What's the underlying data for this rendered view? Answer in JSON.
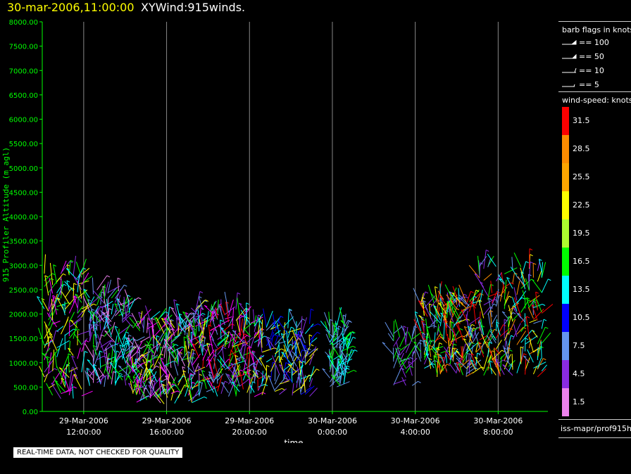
{
  "header": {
    "datetime": "30-mar-2006,11:00:00",
    "title": "XYWind:915winds."
  },
  "chart_data": {
    "type": "wind-barb-scatter",
    "xlabel": "time",
    "ylabel": "915 Profiler Altitude (m agl)",
    "ylim": [
      0,
      8000
    ],
    "yticks": [
      "0.00",
      "500.00",
      "1000.00",
      "1500.00",
      "2000.00",
      "2500.00",
      "3000.00",
      "3500.00",
      "4000.00",
      "4500.00",
      "5000.00",
      "5500.00",
      "6000.00",
      "6500.00",
      "7000.00",
      "7500.00",
      "8000.00"
    ],
    "xlim_hours": [
      10.0,
      34.4
    ],
    "xticks": [
      {
        "hour": 12,
        "date": "29-Mar-2006",
        "time": "12:00:00"
      },
      {
        "hour": 16,
        "date": "29-Mar-2006",
        "time": "16:00:00"
      },
      {
        "hour": 20,
        "date": "29-Mar-2006",
        "time": "20:00:00"
      },
      {
        "hour": 24,
        "date": "30-Mar-2006",
        "time": "0:00:00"
      },
      {
        "hour": 28,
        "date": "30-Mar-2006",
        "time": "4:00:00"
      },
      {
        "hour": 32,
        "date": "30-Mar-2006",
        "time": "8:00:00"
      }
    ],
    "grid": "vertical at x ticks",
    "clusters": [
      {
        "t0": 10.0,
        "t1": 12.0,
        "h0": 250,
        "h1": 2900,
        "hour_count": 10,
        "colors": [
          "#00ffff",
          "#ffff00",
          "#00ff00",
          "#ff00ff",
          "#8a2be2"
        ]
      },
      {
        "t0": 12.2,
        "t1": 14.3,
        "h0": 500,
        "h1": 2500,
        "hour_count": 12,
        "colors": [
          "#00ffff",
          "#6495ed",
          "#8a2be2",
          "#00ff00",
          "#ee82ee"
        ]
      },
      {
        "t0": 14.3,
        "t1": 17.3,
        "h0": 150,
        "h1": 1900,
        "hour_count": 18,
        "colors": [
          "#ff00ff",
          "#8a2be2",
          "#00ffff",
          "#6495ed",
          "#ee82ee",
          "#00ff00",
          "#ffff00"
        ]
      },
      {
        "t0": 17.3,
        "t1": 20.5,
        "h0": 300,
        "h1": 2100,
        "hour_count": 18,
        "colors": [
          "#ff00ff",
          "#8a2be2",
          "#00ffff",
          "#00ff00",
          "#ffff00",
          "#ff0000",
          "#6495ed"
        ]
      },
      {
        "t0": 20.5,
        "t1": 23.0,
        "h0": 300,
        "h1": 1800,
        "hour_count": 12,
        "colors": [
          "#00ffff",
          "#6495ed",
          "#8a2be2",
          "#0000ff",
          "#ffff00"
        ]
      },
      {
        "t0": 23.8,
        "t1": 24.8,
        "h0": 500,
        "h1": 1800,
        "hour_count": 6,
        "colors": [
          "#00ffff",
          "#00ff00",
          "#6495ed"
        ]
      },
      {
        "t0": 26.8,
        "t1": 28.0,
        "h0": 500,
        "h1": 1600,
        "hour_count": 4,
        "colors": [
          "#6495ed",
          "#00ff00",
          "#8a2be2"
        ]
      },
      {
        "t0": 28.2,
        "t1": 31.0,
        "h0": 700,
        "h1": 2300,
        "hour_count": 18,
        "colors": [
          "#ffff00",
          "#ff0000",
          "#ff8c00",
          "#00ffff",
          "#6495ed",
          "#8a2be2",
          "#00ff00"
        ]
      },
      {
        "t0": 31.0,
        "t1": 34.2,
        "h0": 700,
        "h1": 3000,
        "hour_count": 16,
        "colors": [
          "#ffff00",
          "#ff8c00",
          "#00ffff",
          "#6495ed",
          "#8a2be2",
          "#00ff00",
          "#ff0000"
        ]
      }
    ]
  },
  "legend": {
    "barb_title": "barb flags in knots",
    "barb_flags": [
      {
        "label": "== 100"
      },
      {
        "label": "== 50"
      },
      {
        "label": "== 10"
      },
      {
        "label": "== 5"
      }
    ],
    "speed_title": "wind-speed: knots",
    "speed_scale": [
      {
        "label": "31.5",
        "color": "#ff0000"
      },
      {
        "label": "28.5",
        "color": "#ff8c00"
      },
      {
        "label": "25.5",
        "color": "#ffa500"
      },
      {
        "label": "22.5",
        "color": "#ffff00"
      },
      {
        "label": "19.5",
        "color": "#adff2f"
      },
      {
        "label": "16.5",
        "color": "#00ff00"
      },
      {
        "label": "13.5",
        "color": "#00ffff"
      },
      {
        "label": "10.5",
        "color": "#0000ff"
      },
      {
        "label": "7.5",
        "color": "#6495ed"
      },
      {
        "label": "4.5",
        "color": "#8a2be2"
      },
      {
        "label": "1.5",
        "color": "#ee82ee"
      }
    ],
    "source": "iss-mapr/prof915h"
  },
  "footer": {
    "qa_note": "REAL-TIME DATA, NOT CHECKED FOR QUALITY"
  },
  "colors": {
    "axis": "#00ff00",
    "grid": "#888888",
    "background": "#000000"
  }
}
